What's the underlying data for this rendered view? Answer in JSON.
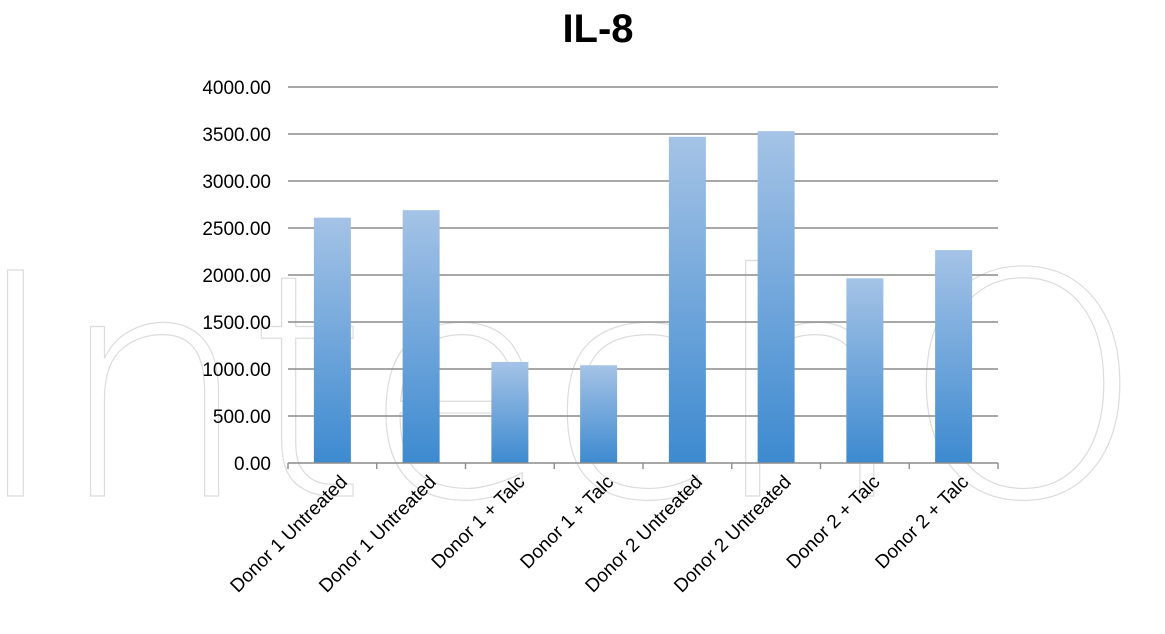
{
  "watermark": "IntechOpen",
  "colors": {
    "bar_top": "#a5c3e6",
    "bar_bottom": "#3d8ad0",
    "gridline": "#8c8c8c",
    "axis": "#8c8c8c"
  },
  "chart_data": {
    "type": "bar",
    "title": "IL-8",
    "xlabel": "",
    "ylabel": "",
    "categories": [
      "Donor 1 Untreated",
      "Donor 1 Untreated",
      "Donor 1 + Talc",
      "Donor 1 + Talc",
      "Donor 2 Untreated",
      "Donor 2 Untreated",
      "Donor 2 + Talc",
      "Donor 2 + Talc"
    ],
    "values": [
      2610,
      2690,
      1075,
      1040,
      3470,
      3530,
      1965,
      2265
    ],
    "ylim": [
      0,
      4000
    ],
    "yticks": [
      "0.00",
      "500.00",
      "1000.00",
      "1500.00",
      "2000.00",
      "2500.00",
      "3000.00",
      "3500.00",
      "4000.00"
    ],
    "grid": true,
    "legend": "none"
  }
}
